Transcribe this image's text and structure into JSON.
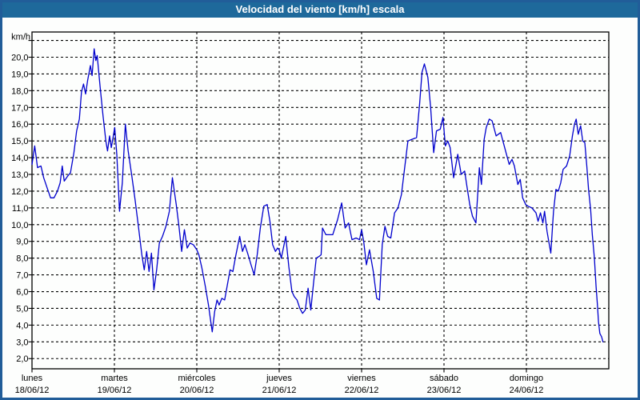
{
  "window": {
    "title": "Velocidad del viento [km/h] escala"
  },
  "colors": {
    "titlebar_bg": "#1e699b",
    "frame_border": "#215d99",
    "series_line": "#0000cd",
    "grid": "#000000",
    "plot_border": "#000000",
    "label_text": "#000000"
  },
  "chart_data": {
    "type": "line",
    "title": "Velocidad del viento [km/h] escala",
    "xlabel": "",
    "ylabel": "km/h",
    "y_unit_label": "km/h",
    "ylim": [
      1.4,
      21.5
    ],
    "grid": "dashed",
    "legend": "none",
    "hours_per_day": 24,
    "y_gridline_values": [
      2,
      3,
      4,
      5,
      6,
      7,
      8,
      9,
      10,
      11,
      12,
      13,
      14,
      15,
      16,
      17,
      18,
      19,
      20,
      21
    ],
    "y_ticks": [
      [
        20,
        "20,0"
      ],
      [
        19,
        "19,0"
      ],
      [
        18,
        "18,0"
      ],
      [
        17,
        "17,0"
      ],
      [
        16,
        "16,0"
      ],
      [
        15,
        "15,0"
      ],
      [
        14,
        "14,0"
      ],
      [
        13,
        "13,0"
      ],
      [
        12,
        "12,0"
      ],
      [
        11,
        "11,0"
      ],
      [
        10,
        "10,0"
      ],
      [
        9,
        "9,0"
      ],
      [
        8,
        "8,0"
      ],
      [
        7,
        "7,0"
      ],
      [
        6,
        "6,0"
      ],
      [
        5,
        "5,0"
      ],
      [
        4,
        "4,0"
      ],
      [
        3,
        "3,0"
      ],
      [
        2,
        "2,0"
      ]
    ],
    "x_days": [
      {
        "name": "lunes",
        "date": "18/06/12"
      },
      {
        "name": "martes",
        "date": "19/06/12"
      },
      {
        "name": "miércoles",
        "date": "20/06/12"
      },
      {
        "name": "jueves",
        "date": "21/06/12"
      },
      {
        "name": "viernes",
        "date": "22/06/12"
      },
      {
        "name": "sábado",
        "date": "23/06/12"
      },
      {
        "name": "domingo",
        "date": "24/06/12"
      }
    ],
    "series": [
      {
        "name": "velocidad del viento",
        "units": "km/h",
        "color": "#0000cd",
        "points": [
          [
            0,
            13.6
          ],
          [
            0.8,
            14.7
          ],
          [
            1.6,
            13.4
          ],
          [
            2.6,
            13.5
          ],
          [
            3.4,
            12.8
          ],
          [
            4.4,
            12.2
          ],
          [
            5.4,
            11.6
          ],
          [
            6.4,
            11.6
          ],
          [
            7.4,
            12.0
          ],
          [
            8.2,
            12.5
          ],
          [
            8.8,
            13.5
          ],
          [
            9.4,
            12.6
          ],
          [
            10.4,
            12.9
          ],
          [
            11.2,
            13.1
          ],
          [
            12.2,
            14.3
          ],
          [
            13,
            15.6
          ],
          [
            13.8,
            16.3
          ],
          [
            14.4,
            17.9
          ],
          [
            15,
            18.4
          ],
          [
            15.6,
            17.8
          ],
          [
            16.2,
            18.6
          ],
          [
            17,
            19.5
          ],
          [
            17.5,
            18.9
          ],
          [
            18.1,
            20.5
          ],
          [
            18.6,
            19.8
          ],
          [
            19,
            20.1
          ],
          [
            19.8,
            18.3
          ],
          [
            20.7,
            16.5
          ],
          [
            21.5,
            15.0
          ],
          [
            22,
            14.4
          ],
          [
            22.6,
            15.3
          ],
          [
            23.1,
            14.6
          ],
          [
            23.6,
            15.2
          ],
          [
            24.1,
            15.8
          ],
          [
            24.7,
            14.2
          ],
          [
            25.5,
            10.8
          ],
          [
            26.3,
            12.5
          ],
          [
            27.2,
            16.0
          ],
          [
            28,
            14.4
          ],
          [
            29,
            13.0
          ],
          [
            30,
            11.5
          ],
          [
            31,
            9.9
          ],
          [
            32,
            8.2
          ],
          [
            32.7,
            7.3
          ],
          [
            33.4,
            8.4
          ],
          [
            34.1,
            7.2
          ],
          [
            34.8,
            8.3
          ],
          [
            35.5,
            6.1
          ],
          [
            36.3,
            7.3
          ],
          [
            37.1,
            8.9
          ],
          [
            38,
            9.3
          ],
          [
            39,
            9.9
          ],
          [
            40,
            10.8
          ],
          [
            40.9,
            12.8
          ],
          [
            42,
            11.2
          ],
          [
            42.8,
            9.9
          ],
          [
            43.6,
            8.4
          ],
          [
            44.4,
            9.7
          ],
          [
            45.2,
            8.6
          ],
          [
            46,
            8.9
          ],
          [
            47,
            8.8
          ],
          [
            48,
            8.5
          ],
          [
            48.6,
            8.2
          ],
          [
            49.5,
            7.4
          ],
          [
            50.5,
            6.3
          ],
          [
            51.4,
            5.2
          ],
          [
            52,
            4.3
          ],
          [
            52.5,
            3.6
          ],
          [
            53.2,
            4.8
          ],
          [
            53.9,
            5.5
          ],
          [
            54.5,
            5.2
          ],
          [
            55.3,
            5.6
          ],
          [
            56.1,
            5.5
          ],
          [
            56.9,
            6.4
          ],
          [
            57.7,
            7.3
          ],
          [
            58.5,
            7.2
          ],
          [
            59.3,
            8.1
          ],
          [
            60.5,
            9.3
          ],
          [
            61.3,
            8.4
          ],
          [
            62,
            8.8
          ],
          [
            62.8,
            8.3
          ],
          [
            63.8,
            7.6
          ],
          [
            64.7,
            7.0
          ],
          [
            65.6,
            8.2
          ],
          [
            66.5,
            9.8
          ],
          [
            67.5,
            11.1
          ],
          [
            68.5,
            11.2
          ],
          [
            69.3,
            10.2
          ],
          [
            70.1,
            8.8
          ],
          [
            70.9,
            8.4
          ],
          [
            71.5,
            8.6
          ],
          [
            72,
            8.5
          ],
          [
            72.6,
            8.0
          ],
          [
            73.9,
            9.3
          ],
          [
            74.8,
            7.5
          ],
          [
            75.7,
            6.0
          ],
          [
            76.4,
            5.7
          ],
          [
            77.2,
            5.5
          ],
          [
            78,
            5.0
          ],
          [
            78.8,
            4.7
          ],
          [
            79.6,
            4.9
          ],
          [
            80.4,
            6.2
          ],
          [
            81.2,
            4.9
          ],
          [
            82,
            6.5
          ],
          [
            82.8,
            8.0
          ],
          [
            83.6,
            8.1
          ],
          [
            84.2,
            8.2
          ],
          [
            84.6,
            9.8
          ],
          [
            85.6,
            9.4
          ],
          [
            86.6,
            9.4
          ],
          [
            87.6,
            9.4
          ],
          [
            89,
            10.3
          ],
          [
            90.2,
            11.3
          ],
          [
            91.2,
            9.8
          ],
          [
            92.2,
            10.1
          ],
          [
            93.2,
            9.1
          ],
          [
            94.4,
            9.2
          ],
          [
            95.4,
            9.1
          ],
          [
            96,
            9.7
          ],
          [
            96.6,
            9.0
          ],
          [
            97.4,
            7.6
          ],
          [
            98.3,
            8.5
          ],
          [
            99.4,
            7.2
          ],
          [
            100.4,
            5.6
          ],
          [
            101.2,
            5.5
          ],
          [
            102,
            8.8
          ],
          [
            102.8,
            9.9
          ],
          [
            103.6,
            9.3
          ],
          [
            104.5,
            9.2
          ],
          [
            105.6,
            10.7
          ],
          [
            106.6,
            11.0
          ],
          [
            107.6,
            11.8
          ],
          [
            108.6,
            13.5
          ],
          [
            109.5,
            15.0
          ],
          [
            110.7,
            15.1
          ],
          [
            112,
            15.2
          ],
          [
            112.9,
            17.2
          ],
          [
            113.6,
            19.1
          ],
          [
            114.3,
            19.6
          ],
          [
            115.3,
            18.8
          ],
          [
            116.1,
            17.0
          ],
          [
            117,
            14.3
          ],
          [
            117.8,
            15.6
          ],
          [
            118.9,
            15.7
          ],
          [
            119.7,
            16.4
          ],
          [
            120.4,
            14.7
          ],
          [
            121.1,
            15.0
          ],
          [
            121.8,
            14.6
          ],
          [
            122.8,
            12.8
          ],
          [
            124,
            14.2
          ],
          [
            125,
            13.0
          ],
          [
            126,
            13.2
          ],
          [
            126.6,
            12.4
          ],
          [
            127.5,
            11.2
          ],
          [
            128.3,
            10.5
          ],
          [
            129.3,
            10.1
          ],
          [
            130.3,
            13.4
          ],
          [
            130.9,
            12.4
          ],
          [
            131.7,
            15.1
          ],
          [
            132.3,
            15.8
          ],
          [
            133.2,
            16.3
          ],
          [
            134,
            16.2
          ],
          [
            135.2,
            15.3
          ],
          [
            136.5,
            15.5
          ],
          [
            138.2,
            14.2
          ],
          [
            139,
            13.6
          ],
          [
            139.8,
            13.9
          ],
          [
            140.5,
            13.5
          ],
          [
            141.5,
            12.4
          ],
          [
            142.2,
            12.7
          ],
          [
            142.9,
            11.6
          ],
          [
            143.8,
            11.2
          ],
          [
            144.5,
            11.1
          ],
          [
            145.6,
            11.0
          ],
          [
            146.8,
            10.7
          ],
          [
            147.4,
            10.2
          ],
          [
            148.1,
            10.7
          ],
          [
            148.8,
            10.1
          ],
          [
            149.3,
            10.8
          ],
          [
            150,
            9.6
          ],
          [
            150.6,
            8.9
          ],
          [
            151.1,
            8.3
          ],
          [
            151.9,
            10.8
          ],
          [
            152.6,
            12.1
          ],
          [
            153.3,
            12.0
          ],
          [
            154,
            12.5
          ],
          [
            154.7,
            13.3
          ],
          [
            155.7,
            13.5
          ],
          [
            156.6,
            14.1
          ],
          [
            157.4,
            15.3
          ],
          [
            158,
            16.0
          ],
          [
            158.5,
            16.3
          ],
          [
            159.1,
            15.4
          ],
          [
            159.8,
            15.9
          ],
          [
            160.4,
            15.0
          ],
          [
            161,
            14.9
          ],
          [
            161.6,
            13.5
          ],
          [
            162.1,
            12.1
          ],
          [
            162.7,
            10.9
          ],
          [
            163.2,
            9.4
          ],
          [
            163.8,
            8.0
          ],
          [
            164.3,
            6.3
          ],
          [
            164.7,
            5.2
          ],
          [
            165,
            4.2
          ],
          [
            165.4,
            3.5
          ],
          [
            165.9,
            3.3
          ],
          [
            166.3,
            3.0
          ]
        ]
      }
    ]
  }
}
